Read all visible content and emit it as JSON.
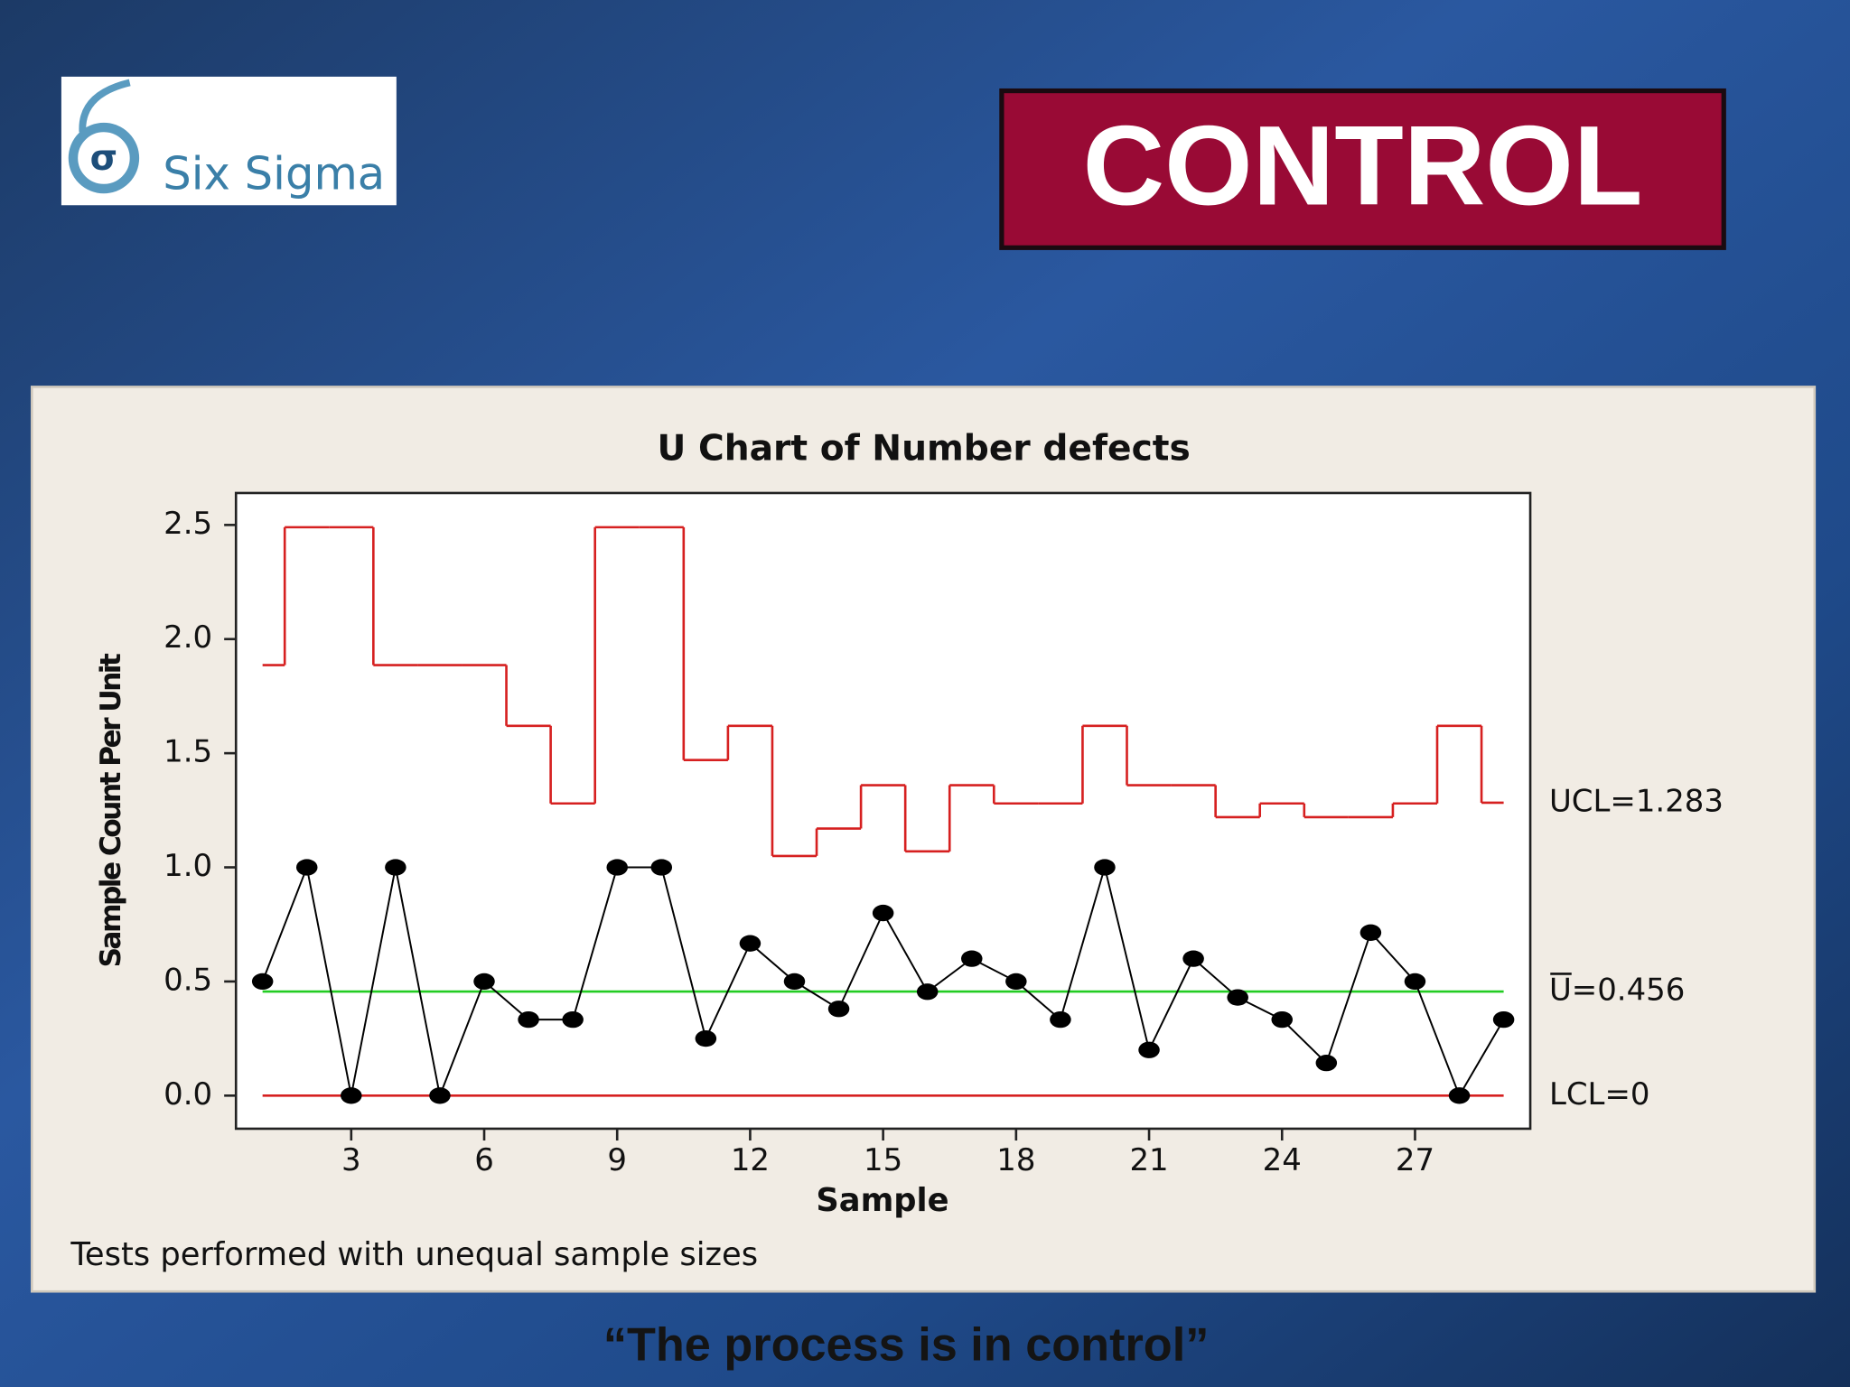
{
  "logo": {
    "text": "Six Sigma"
  },
  "header": {
    "title": "CONTROL"
  },
  "chart_data": {
    "type": "line",
    "title": "U Chart of Number defects",
    "x_label": "Sample",
    "y_label": "Sample Count Per Unit",
    "x": [
      1,
      2,
      3,
      4,
      5,
      6,
      7,
      8,
      9,
      10,
      11,
      12,
      13,
      14,
      15,
      16,
      17,
      18,
      19,
      20,
      21,
      22,
      23,
      24,
      25,
      26,
      27,
      28,
      29
    ],
    "series": [
      {
        "name": "Number defects",
        "color": "#000000",
        "values": [
          0.5,
          1.0,
          0,
          1.0,
          0,
          0.5,
          0.333,
          0.333,
          1.0,
          1.0,
          0.25,
          0.667,
          0.5,
          0.38,
          0.8,
          0.455,
          0.6,
          0.5,
          0.333,
          1.0,
          0.2,
          0.6,
          0.43,
          0.333,
          0.143,
          0.714,
          0.5,
          0,
          0.333
        ]
      },
      {
        "name": "UCL",
        "color": "#d62020",
        "values": [
          1.886,
          2.49,
          2.49,
          1.886,
          1.886,
          1.886,
          1.62,
          1.28,
          2.49,
          2.49,
          1.47,
          1.62,
          1.05,
          1.17,
          1.36,
          1.07,
          1.36,
          1.28,
          1.28,
          1.62,
          1.36,
          1.36,
          1.22,
          1.28,
          1.22,
          1.22,
          1.28,
          1.62,
          1.283
        ]
      }
    ],
    "center": 0.456,
    "center_color": "#22cc22",
    "center_label": "U=0.456",
    "lcl": 0,
    "lcl_color": "#d62020",
    "lcl_label": "LCL=0",
    "ucl_label": "UCL=1.283",
    "xlim": [
      0.4,
      29.6
    ],
    "xticks": [
      3,
      6,
      9,
      12,
      15,
      18,
      21,
      24,
      27
    ],
    "ylim": [
      -0.145,
      2.64
    ],
    "yticks": [
      {
        "value": 0,
        "label": "0.0"
      },
      0.5,
      {
        "value": 1,
        "label": "1.0"
      },
      1.5,
      {
        "value": 2,
        "label": "2.0"
      },
      2.5
    ],
    "note": "Tests performed with unequal sample sizes"
  },
  "caption": "“The process is in control”"
}
